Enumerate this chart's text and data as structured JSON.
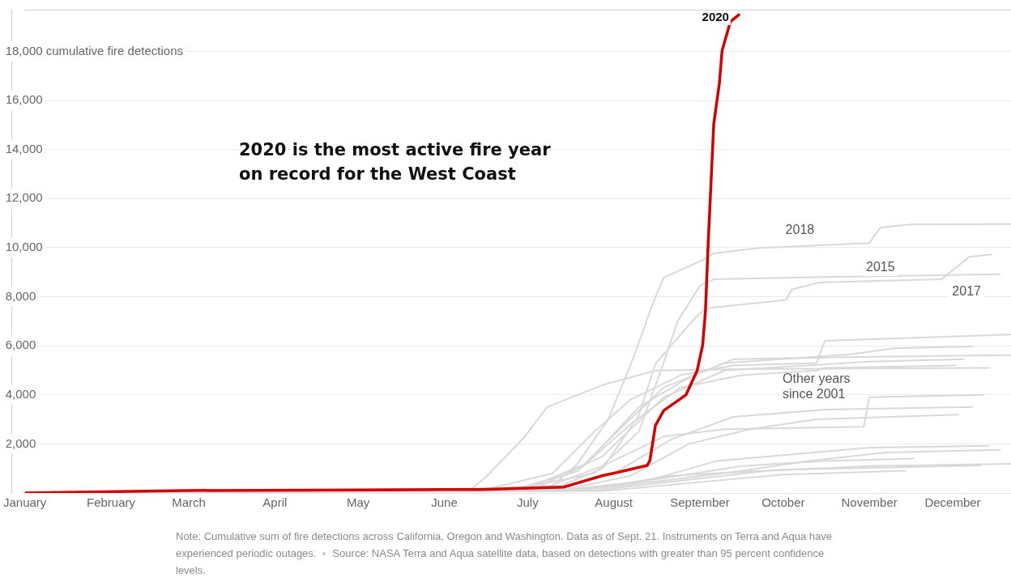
{
  "chart_data": {
    "type": "line",
    "title": "2020 is the most active fire year on record for the West Coast",
    "xlim": [
      "--01-01",
      "--12-22"
    ],
    "xticks": [
      {
        "value": "--01-01",
        "label": "January"
      },
      {
        "value": "--02-01",
        "label": "February"
      },
      {
        "value": "--03-01",
        "label": "March"
      },
      {
        "value": "--04-01",
        "label": "April"
      },
      {
        "value": "--05-01",
        "label": "May"
      },
      {
        "value": "--06-01",
        "label": "June"
      },
      {
        "value": "--07-01",
        "label": "July"
      },
      {
        "value": "--08-01",
        "label": "August"
      },
      {
        "value": "--09-01",
        "label": "September"
      },
      {
        "value": "--10-01",
        "label": "October"
      },
      {
        "value": "--11-01",
        "label": "November"
      },
      {
        "value": "--12-01",
        "label": "December"
      }
    ],
    "ylim": [
      0,
      19700
    ],
    "yticks": [
      {
        "value": 2000,
        "label": "2,000"
      },
      {
        "value": 4000,
        "label": "4,000"
      },
      {
        "value": 6000,
        "label": "6,000"
      },
      {
        "value": 8000,
        "label": "8,000"
      },
      {
        "value": 10000,
        "label": "10,000"
      },
      {
        "value": 12000,
        "label": "12,000"
      },
      {
        "value": 14000,
        "label": "14,000"
      },
      {
        "value": 16000,
        "label": "16,000"
      },
      {
        "value": 18000,
        "label": "18,000 cumulative fire detections"
      }
    ],
    "grid": "y",
    "legend": false,
    "marker": "none",
    "line_style": "solid",
    "series": [
      {
        "color": "#d9d9d9",
        "x": [
          "--01-01",
          "--06-16",
          "--07-10",
          "--07-25",
          "--08-07",
          "--08-25",
          "--09-13",
          "--10-13",
          "--10-16",
          "--12-22"
        ],
        "values": [
          0,
          150,
          800,
          2500,
          3800,
          4800,
          5200,
          5300,
          6200,
          6460
        ]
      },
      {
        "color": "#d9d9d9",
        "x": [
          "--01-01",
          "--06-25",
          "--07-19",
          "--08-04",
          "--08-19",
          "--09-10",
          "--10-25",
          "--11-10",
          "--12-08"
        ],
        "values": [
          0,
          100,
          900,
          2700,
          4300,
          5300,
          5650,
          5900,
          5970
        ]
      },
      {
        "color": "#d9d9d9",
        "x": [
          "--01-01",
          "--07-01",
          "--07-22",
          "--08-10",
          "--08-28",
          "--09-13",
          "--11-01",
          "--12-22"
        ],
        "values": [
          0,
          200,
          1200,
          3500,
          4700,
          5450,
          5550,
          5620
        ]
      },
      {
        "color": "#d9d9d9",
        "x": [
          "--01-01",
          "--07-04",
          "--07-28",
          "--08-19",
          "--09-10",
          "--11-01",
          "--12-05"
        ],
        "values": [
          0,
          200,
          1500,
          3900,
          5000,
          5350,
          5450
        ]
      },
      {
        "color": "#d9d9d9",
        "x": [
          "--01-01",
          "--06-28",
          "--07-19",
          "--08-07",
          "--08-25",
          "--09-16",
          "--10-13",
          "--10-16",
          "--12-02"
        ],
        "values": [
          0,
          150,
          900,
          2800,
          4300,
          4800,
          4990,
          5100,
          5200
        ]
      },
      {
        "color": "#d9d9d9",
        "x": [
          "--01-01",
          "--06-10",
          "--06-16",
          "--06-30",
          "--07-08",
          "--07-28",
          "--08-16",
          "--09-16",
          "--12-14"
        ],
        "values": [
          0,
          100,
          650,
          2300,
          3500,
          4400,
          4990,
          5050,
          5100
        ]
      },
      {
        "color": "#d9d9d9",
        "x": [
          "--01-01",
          "--07-07",
          "--07-28",
          "--08-19",
          "--09-10",
          "--10-30",
          "--11-01",
          "--12-12"
        ],
        "values": [
          0,
          200,
          1100,
          2300,
          2600,
          2700,
          3900,
          4000
        ]
      },
      {
        "color": "#d9d9d9",
        "x": [
          "--01-01",
          "--07-10",
          "--08-01",
          "--08-22",
          "--09-13",
          "--10-16",
          "--12-08"
        ],
        "values": [
          0,
          150,
          800,
          2200,
          3100,
          3400,
          3510
        ]
      },
      {
        "color": "#d9d9d9",
        "x": [
          "--01-01",
          "--07-13",
          "--08-07",
          "--08-28",
          "--09-19",
          "--10-13",
          "--12-03"
        ],
        "values": [
          0,
          100,
          700,
          2000,
          2600,
          3000,
          3190
        ]
      },
      {
        "color": "#d9d9d9",
        "x": [
          "--01-01",
          "--07-13",
          "--08-13",
          "--09-07",
          "--10-07",
          "--11-01",
          "--12-14"
        ],
        "values": [
          0,
          100,
          500,
          1300,
          1600,
          1850,
          1920
        ]
      },
      {
        "color": "#d9d9d9",
        "x": [
          "--01-01",
          "--07-19",
          "--08-19",
          "--09-16",
          "--10-10",
          "--11-07",
          "--12-18"
        ],
        "values": [
          0,
          100,
          500,
          900,
          1300,
          1650,
          1760
        ]
      },
      {
        "color": "#d9d9d9",
        "x": [
          "--01-01",
          "--07-25",
          "--08-25",
          "--09-25",
          "--11-01",
          "--12-22"
        ],
        "values": [
          0,
          100,
          500,
          900,
          1100,
          1190
        ]
      },
      {
        "color": "#d9d9d9",
        "x": [
          "--01-01",
          "--07-19",
          "--08-19",
          "--09-16",
          "--10-16",
          "--11-17"
        ],
        "values": [
          0,
          100,
          600,
          1100,
          1300,
          1400
        ]
      },
      {
        "color": "#d9d9d9",
        "x": [
          "--01-01",
          "--07-28",
          "--08-28",
          "--10-01",
          "--11-14"
        ],
        "values": [
          0,
          80,
          400,
          750,
          910
        ]
      },
      {
        "color": "#d9d9d9",
        "x": [
          "--01-01",
          "--07-22",
          "--08-22",
          "--10-01",
          "--12-11"
        ],
        "values": [
          0,
          150,
          700,
          950,
          1120
        ]
      },
      {
        "color": "#d9d9d9",
        "x": [
          "--01-01",
          "--06-01",
          "--07-10",
          "--07-19",
          "--07-30",
          "--08-08",
          "--08-15",
          "--08-19",
          "--09-02",
          "--09-06",
          "--09-22",
          "--11-01",
          "--11-05",
          "--11-16",
          "--12-22"
        ],
        "values": [
          0,
          100,
          300,
          1200,
          3000,
          5500,
          7700,
          8780,
          9490,
          9770,
          9980,
          10190,
          10820,
          10950,
          10960
        ]
      },
      {
        "color": "#d9d9d9",
        "x": [
          "--01-01",
          "--06-01",
          "--07-01",
          "--07-25",
          "--08-10",
          "--08-18",
          "--08-24",
          "--09-01",
          "--09-06",
          "--10-16",
          "--12-18"
        ],
        "values": [
          0,
          100,
          250,
          800,
          2500,
          5000,
          7000,
          8450,
          8710,
          8800,
          8920
        ]
      },
      {
        "color": "#d9d9d9",
        "x": [
          "--01-01",
          "--06-16",
          "--07-13",
          "--07-28",
          "--08-10",
          "--08-16",
          "--08-30",
          "--09-03",
          "--10-02",
          "--10-04",
          "--10-14",
          "--11-27",
          "--12-07",
          "--12-15"
        ],
        "values": [
          0,
          100,
          300,
          1000,
          3150,
          5270,
          7100,
          7520,
          7870,
          8290,
          8580,
          8710,
          9630,
          9730
        ]
      },
      {
        "name": "2020",
        "color": "#d40000",
        "x": [
          "--01-01",
          "--02-28",
          "--05-31",
          "--06-14",
          "--07-14",
          "--07-19",
          "--07-28",
          "--08-04",
          "--08-13",
          "--08-14",
          "--08-16",
          "--08-19",
          "--08-24",
          "--08-27",
          "--08-31",
          "--09-02",
          "--09-03",
          "--09-04",
          "--09-06",
          "--09-08",
          "--09-09",
          "--09-12",
          "--09-15"
        ],
        "values": [
          0,
          100,
          140,
          140,
          240,
          410,
          710,
          880,
          1120,
          1320,
          2750,
          3360,
          3760,
          4000,
          4980,
          6030,
          7390,
          10200,
          15050,
          16680,
          18030,
          19220,
          19490
        ]
      }
    ],
    "annotations": [
      {
        "text": "2018",
        "x": "--10-07",
        "y": 10710
      },
      {
        "text": "2015",
        "x": "--11-05",
        "y": 9190
      },
      {
        "text": "2017",
        "x": "--12-06",
        "y": 8200
      },
      "Other years since 2001",
      "Note: Cumulative sum of fire detections across California, Oregon and Washington. Data as of Sept. 21. Instruments on Terra and Aqua have experienced periodic outages.",
      "Source: NASA Terra and Aqua satellite data, based on detections with greater than 95 percent confidence levels."
    ]
  }
}
